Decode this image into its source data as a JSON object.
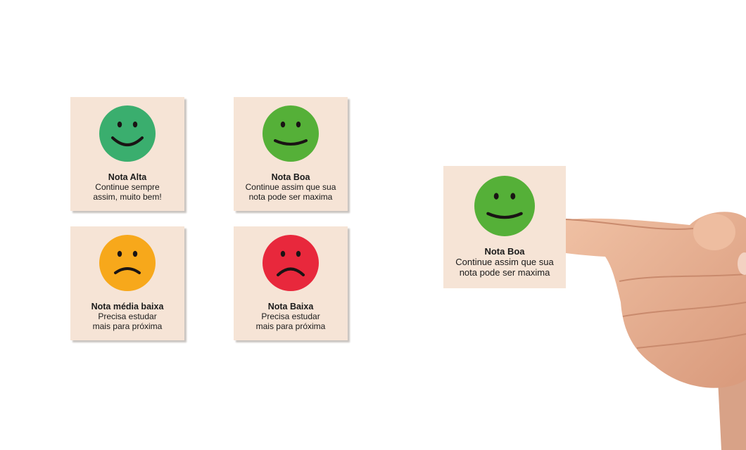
{
  "cards": [
    {
      "title": "Nota Alta",
      "line1": "Continue sempre",
      "line2": "assim, muito bem!",
      "mood": "happy",
      "color": "#3aae6e"
    },
    {
      "title": "Nota Boa",
      "line1": "Continue assim que sua",
      "line2": "nota pode ser maxima",
      "mood": "content",
      "color": "#55b038"
    },
    {
      "title": "Nota média baixa",
      "line1": "Precisa estudar",
      "line2": "mais para próxima",
      "mood": "sad",
      "color": "#f7a81b"
    },
    {
      "title": "Nota Baixa",
      "line1": "Precisa estudar",
      "line2": "mais para próxima",
      "mood": "frown",
      "color": "#e8283c"
    }
  ],
  "featured": {
    "title": "Nota Boa",
    "line1": "Continue assim que sua",
    "line2": "nota pode ser maxima",
    "mood": "content",
    "color": "#55b038"
  },
  "colors": {
    "card_bg": "#f6e4d6",
    "skin": "#eab497"
  }
}
